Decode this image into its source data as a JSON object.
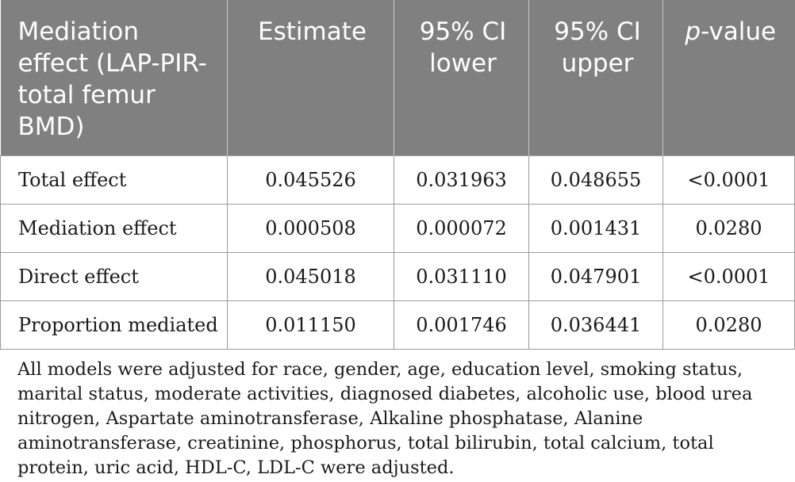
{
  "table": {
    "headers": [
      {
        "label": "Mediation effect (LAP-PIR-total femur BMD)"
      },
      {
        "label": "Estimate"
      },
      {
        "label": "95% CI lower"
      },
      {
        "label": "95% CI upper"
      },
      {
        "label_italic": "p",
        "label_rest": "-value"
      }
    ],
    "rows": [
      {
        "label": "Total effect",
        "estimate": "0.045526",
        "ci_lower": "0.031963",
        "ci_upper": "0.048655",
        "p_value": "<0.0001"
      },
      {
        "label": "Mediation effect",
        "estimate": "0.000508",
        "ci_lower": "0.000072",
        "ci_upper": "0.001431",
        "p_value": "0.0280"
      },
      {
        "label": "Direct effect",
        "estimate": "0.045018",
        "ci_lower": "0.031110",
        "ci_upper": "0.047901",
        "p_value": "<0.0001"
      },
      {
        "label": "Proportion mediated",
        "estimate": "0.011150",
        "ci_lower": "0.001746",
        "ci_upper": "0.036441",
        "p_value": "0.0280"
      }
    ]
  },
  "footnote": "All models were adjusted for race, gender, age, education level, smoking status, marital status, moderate activities, diagnosed diabetes, alcoholic use, blood urea nitrogen, Aspartate aminotransferase, Alkaline phosphatase, Alanine aminotransferase, creatinine, phosphorus, total bilirubin, total calcium, total protein, uric acid, HDL-C, LDL-C were adjusted.",
  "colors": {
    "header_bg": "#808080",
    "header_text": "#ffffff",
    "grid_line": "#9a9a9a"
  }
}
